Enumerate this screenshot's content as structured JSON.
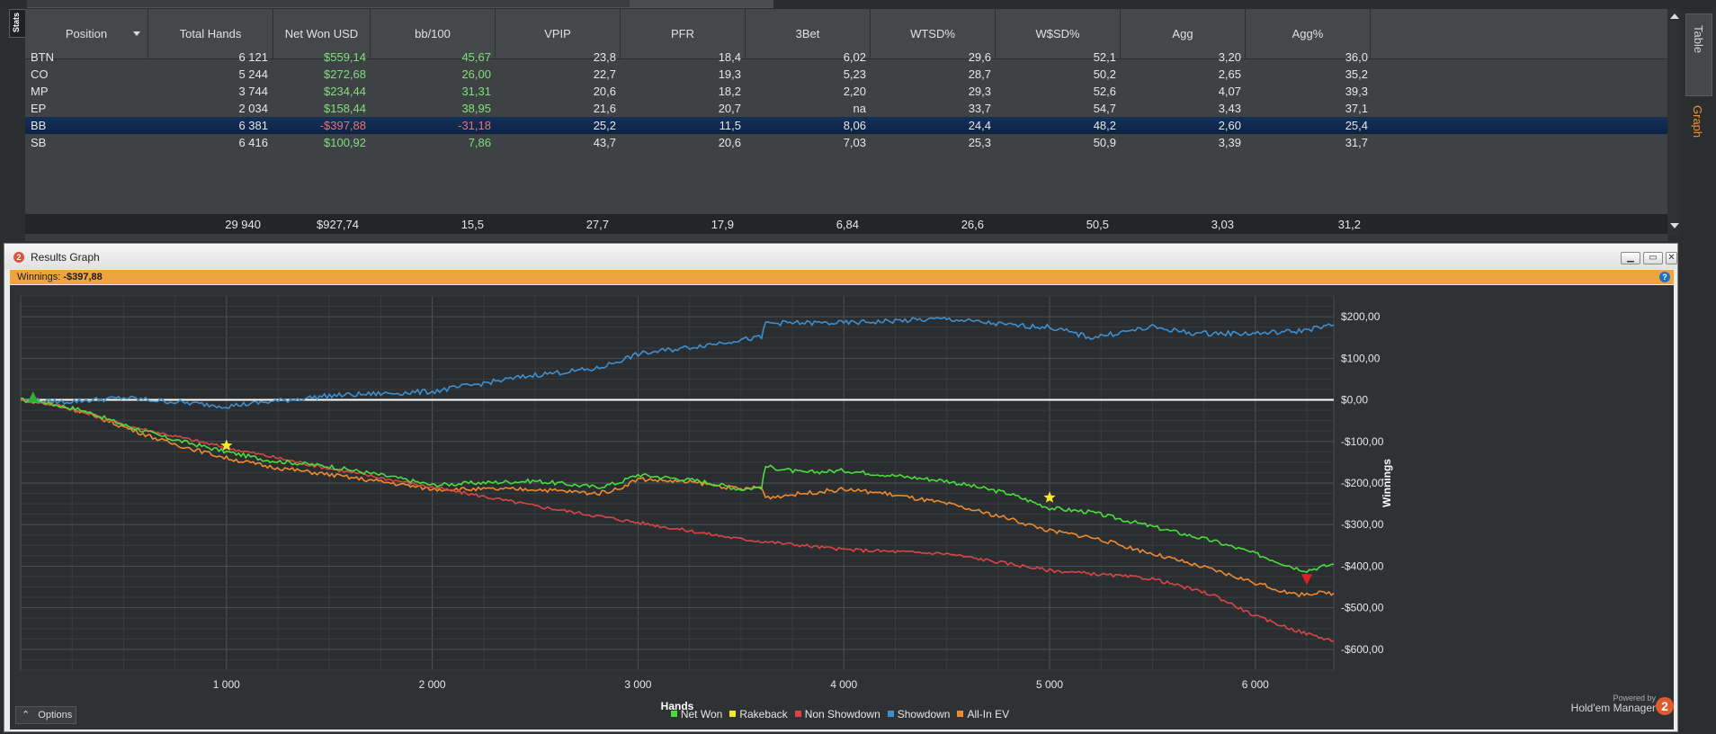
{
  "stats_tab": "Stats",
  "side_tabs": [
    "Table",
    "Graph"
  ],
  "table": {
    "columns": [
      "Position",
      "Total Hands",
      "Net Won USD",
      "bb/100",
      "VPIP",
      "PFR",
      "3Bet",
      "WTSD%",
      "W$SD%",
      "Agg",
      "Agg%"
    ],
    "rows": [
      [
        "BTN",
        "6 121",
        "$559,14",
        "45,67",
        "23,8",
        "18,4",
        "6,02",
        "29,6",
        "52,1",
        "3,20",
        "36,0"
      ],
      [
        "CO",
        "5 244",
        "$272,68",
        "26,00",
        "22,7",
        "19,3",
        "5,23",
        "28,7",
        "50,2",
        "2,65",
        "35,2"
      ],
      [
        "MP",
        "3 744",
        "$234,44",
        "31,31",
        "20,6",
        "18,2",
        "2,20",
        "29,3",
        "52,6",
        "4,07",
        "39,3"
      ],
      [
        "EP",
        "2 034",
        "$158,44",
        "38,95",
        "21,6",
        "20,7",
        "na",
        "33,7",
        "54,7",
        "3,43",
        "37,1"
      ],
      [
        "BB",
        "6 381",
        "-$397,88",
        "-31,18",
        "25,2",
        "11,5",
        "8,06",
        "24,4",
        "48,2",
        "2,60",
        "25,4"
      ],
      [
        "SB",
        "6 416",
        "$100,92",
        "7,86",
        "43,7",
        "20,6",
        "7,03",
        "25,3",
        "50,9",
        "3,39",
        "31,7"
      ]
    ],
    "selected_row": 4,
    "totals": [
      "",
      "29 940",
      "$927,74",
      "15,5",
      "27,7",
      "17,9",
      "6,84",
      "26,6",
      "50,5",
      "3,03",
      "31,2"
    ]
  },
  "panel": {
    "title": "Results Graph",
    "winnings_label": "Winnings:",
    "winnings_value": "-$397,88",
    "options_label": "Options",
    "powered_by": "Powered by",
    "brand": "Hold'em Manager"
  },
  "colors": {
    "net_won": "#48dc3c",
    "rakeback": "#f5e82a",
    "non_showdown": "#d94545",
    "showdown": "#3e8fd0",
    "all_in_ev": "#ee8a2e",
    "zero_line": "#ffffff",
    "accent_orange": "#f0a43d"
  },
  "chart_data": {
    "type": "line",
    "xlabel": "Hands",
    "ylabel": "Winnings",
    "xlim": [
      0,
      6381
    ],
    "ylim": [
      -650,
      250
    ],
    "x_ticks": [
      1000,
      2000,
      3000,
      4000,
      5000,
      6000
    ],
    "x_tick_labels": [
      "1 000",
      "2 000",
      "3 000",
      "4 000",
      "5 000",
      "6 000"
    ],
    "y_ticks": [
      200,
      100,
      0,
      -100,
      -200,
      -300,
      -400,
      -500,
      -600
    ],
    "y_tick_labels": [
      "$200,00",
      "$100,00",
      "$0,00",
      "-$100,00",
      "-$200,00",
      "-$300,00",
      "-$400,00",
      "-$500,00",
      "-$600,00"
    ],
    "grid": true,
    "legend_position": "bottom",
    "series": [
      {
        "name": "Net Won",
        "color": "#48dc3c",
        "x": [
          0,
          100,
          300,
          500,
          700,
          1000,
          1200,
          1500,
          1800,
          2000,
          2200,
          2500,
          2800,
          2900,
          3000,
          3300,
          3500,
          3600,
          3620,
          3800,
          4000,
          4200,
          4500,
          4800,
          5000,
          5200,
          5500,
          5800,
          6000,
          6200,
          6250,
          6381
        ],
        "y": [
          0,
          -5,
          -25,
          -60,
          -90,
          -125,
          -145,
          -160,
          -185,
          -205,
          -200,
          -195,
          -210,
          -200,
          -180,
          -195,
          -215,
          -210,
          -160,
          -175,
          -170,
          -180,
          -195,
          -225,
          -260,
          -270,
          -305,
          -340,
          -370,
          -405,
          -410,
          -395
        ]
      },
      {
        "name": "Non Showdown",
        "color": "#d94545",
        "x": [
          0,
          200,
          500,
          1000,
          1500,
          2000,
          2500,
          3000,
          3500,
          4000,
          4500,
          5000,
          5500,
          5800,
          6000,
          6200,
          6381
        ],
        "y": [
          0,
          -15,
          -60,
          -115,
          -165,
          -210,
          -255,
          -295,
          -335,
          -360,
          -370,
          -410,
          -430,
          -470,
          -520,
          -555,
          -580
        ]
      },
      {
        "name": "Showdown",
        "color": "#3e8fd0",
        "x": [
          0,
          200,
          500,
          1000,
          1500,
          2000,
          2500,
          2800,
          3000,
          3300,
          3500,
          3600,
          3620,
          4000,
          4500,
          4800,
          5000,
          5200,
          5500,
          5700,
          6000,
          6200,
          6381
        ],
        "y": [
          0,
          -5,
          5,
          -15,
          10,
          20,
          60,
          75,
          110,
          130,
          145,
          150,
          185,
          185,
          195,
          180,
          175,
          150,
          175,
          160,
          160,
          165,
          180
        ]
      },
      {
        "name": "All-In EV",
        "color": "#ee8a2e",
        "x": [
          0,
          100,
          300,
          500,
          700,
          1000,
          1200,
          1500,
          1800,
          2000,
          2200,
          2500,
          2800,
          2900,
          3000,
          3300,
          3500,
          3600,
          3620,
          3800,
          4000,
          4200,
          4500,
          4800,
          5000,
          5200,
          5500,
          5800,
          6000,
          6200,
          6250,
          6381
        ],
        "y": [
          0,
          -5,
          -28,
          -65,
          -100,
          -140,
          -160,
          -180,
          -200,
          -215,
          -215,
          -215,
          -225,
          -215,
          -190,
          -200,
          -215,
          -210,
          -235,
          -225,
          -215,
          -225,
          -250,
          -285,
          -315,
          -330,
          -370,
          -410,
          -440,
          -470,
          -465,
          -465
        ]
      }
    ],
    "markers": [
      {
        "series": "Net Won",
        "kind": "max",
        "symbol": "up-triangle",
        "color": "#2fb32f",
        "x": 60,
        "y": 5
      },
      {
        "series": "Rakeback",
        "kind": "star",
        "color": "#f5e82a",
        "x": 1000,
        "y": -110
      },
      {
        "series": "Rakeback",
        "kind": "star",
        "color": "#f5e82a",
        "x": 5000,
        "y": -235
      },
      {
        "series": "Net Won",
        "kind": "min",
        "symbol": "down-triangle",
        "color": "#e02020",
        "x": 6250,
        "y": -430
      }
    ],
    "legend": [
      "Net Won",
      "Rakeback",
      "Non Showdown",
      "Showdown",
      "All-In EV"
    ]
  }
}
